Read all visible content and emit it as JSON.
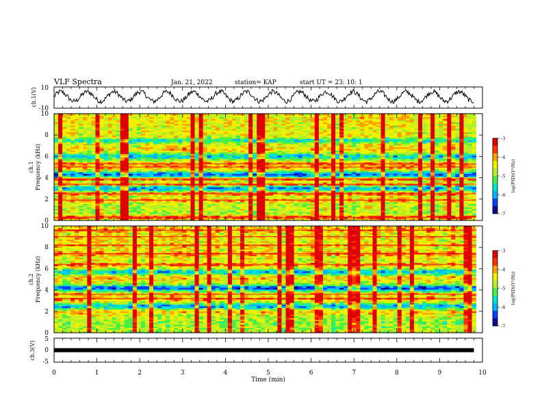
{
  "header": {
    "title": "VLF Spectra",
    "date": "Jan. 21, 2022",
    "station": "station= KAP",
    "start": "start UT =  23: 10: 1"
  },
  "colors": {
    "colormap": [
      "#0a0a8a",
      "#0040ff",
      "#00b4ff",
      "#00e6c8",
      "#46f046",
      "#b4f028",
      "#f0f000",
      "#ffa000",
      "#ff3000",
      "#e00000"
    ]
  },
  "chart_data": [
    {
      "type": "line",
      "panel": "ch1-waveform",
      "ylabel": "ch.1(V)",
      "xlim": [
        0,
        10
      ],
      "ylim": [
        -10,
        10
      ],
      "yticks": [
        "10",
        "-10"
      ],
      "x_end": 9.8,
      "oscillation": {
        "period_min": 0.62,
        "amplitude_v": 4.5,
        "offset_v": 1.0
      }
    },
    {
      "type": "heatmap",
      "panel": "ch1-spectrogram",
      "ylabel": "ch.1\nFrequency (kHz)",
      "xlim": [
        0,
        10
      ],
      "ylim": [
        0,
        10
      ],
      "yticks": [
        "0",
        "2",
        "4",
        "6",
        "8",
        "10"
      ],
      "z_label": "log(PSD)(V²/Hz)",
      "zlim": [
        -7,
        -3
      ],
      "colorbar_ticks": [
        "-3",
        "-4",
        "-5",
        "-6",
        "-7"
      ],
      "bands_khz": [
        {
          "f": 0.3,
          "w": 0.25,
          "lvl": 0.85
        },
        {
          "f": 1.2,
          "w": 0.2,
          "lvl": 0.6
        },
        {
          "f": 1.9,
          "w": 0.25,
          "lvl": 0.75
        },
        {
          "f": 2.5,
          "w": 0.2,
          "lvl": 0.82
        },
        {
          "f": 3.0,
          "w": 0.3,
          "lvl": 0.25
        },
        {
          "f": 3.4,
          "w": 0.15,
          "lvl": 0.8
        },
        {
          "f": 3.9,
          "w": 0.15,
          "lvl": 0.9
        },
        {
          "f": 4.3,
          "w": 0.35,
          "lvl": 0.2
        },
        {
          "f": 5.0,
          "w": 0.2,
          "lvl": 0.75
        },
        {
          "f": 5.3,
          "w": 0.2,
          "lvl": 0.78
        },
        {
          "f": 6.0,
          "w": 0.35,
          "lvl": 0.3
        },
        {
          "f": 6.7,
          "w": 0.15,
          "lvl": 0.7
        },
        {
          "f": 7.5,
          "w": 0.3,
          "lvl": 0.35
        },
        {
          "f": 8.6,
          "w": 0.2,
          "lvl": 0.6
        },
        {
          "f": 9.5,
          "w": 0.3,
          "lvl": 0.65
        }
      ]
    },
    {
      "type": "heatmap",
      "panel": "ch2-spectrogram",
      "ylabel": "ch.2\nFrequency (kHz)",
      "xlim": [
        0,
        10
      ],
      "ylim": [
        0,
        10
      ],
      "yticks": [
        "0",
        "2",
        "4",
        "6",
        "8",
        "10"
      ],
      "z_label": "log(PSD)(V²/Hz)",
      "zlim": [
        -7,
        -3
      ],
      "colorbar_ticks": [
        "-3",
        "-4",
        "-5",
        "-6",
        "-7"
      ],
      "bands_khz": [
        {
          "f": 0.2,
          "w": 0.2,
          "lvl": 0.55
        },
        {
          "f": 0.9,
          "w": 0.2,
          "lvl": 0.5
        },
        {
          "f": 1.9,
          "w": 0.25,
          "lvl": 0.7
        },
        {
          "f": 2.5,
          "w": 0.3,
          "lvl": 0.25
        },
        {
          "f": 3.2,
          "w": 0.2,
          "lvl": 0.8
        },
        {
          "f": 3.6,
          "w": 0.15,
          "lvl": 0.72
        },
        {
          "f": 4.2,
          "w": 0.35,
          "lvl": 0.15
        },
        {
          "f": 5.1,
          "w": 0.2,
          "lvl": 0.7
        },
        {
          "f": 5.7,
          "w": 0.3,
          "lvl": 0.28
        },
        {
          "f": 6.4,
          "w": 0.15,
          "lvl": 0.82
        },
        {
          "f": 7.4,
          "w": 0.25,
          "lvl": 0.8
        },
        {
          "f": 8.2,
          "w": 0.15,
          "lvl": 0.78
        },
        {
          "f": 9.0,
          "w": 0.2,
          "lvl": 0.72
        },
        {
          "f": 9.6,
          "w": 0.2,
          "lvl": 0.78
        }
      ]
    },
    {
      "type": "line",
      "panel": "ch3-waveform",
      "ylabel": "ch.3(V)",
      "xlabel": "Time (min)",
      "xlim": [
        0,
        10
      ],
      "ylim": [
        -5,
        5
      ],
      "yticks": [
        "5",
        "0",
        "-5"
      ],
      "xticks": [
        "0",
        "1",
        "2",
        "3",
        "4",
        "5",
        "6",
        "7",
        "8",
        "9",
        "10"
      ],
      "x_end": 9.8,
      "level_v": 0
    }
  ]
}
